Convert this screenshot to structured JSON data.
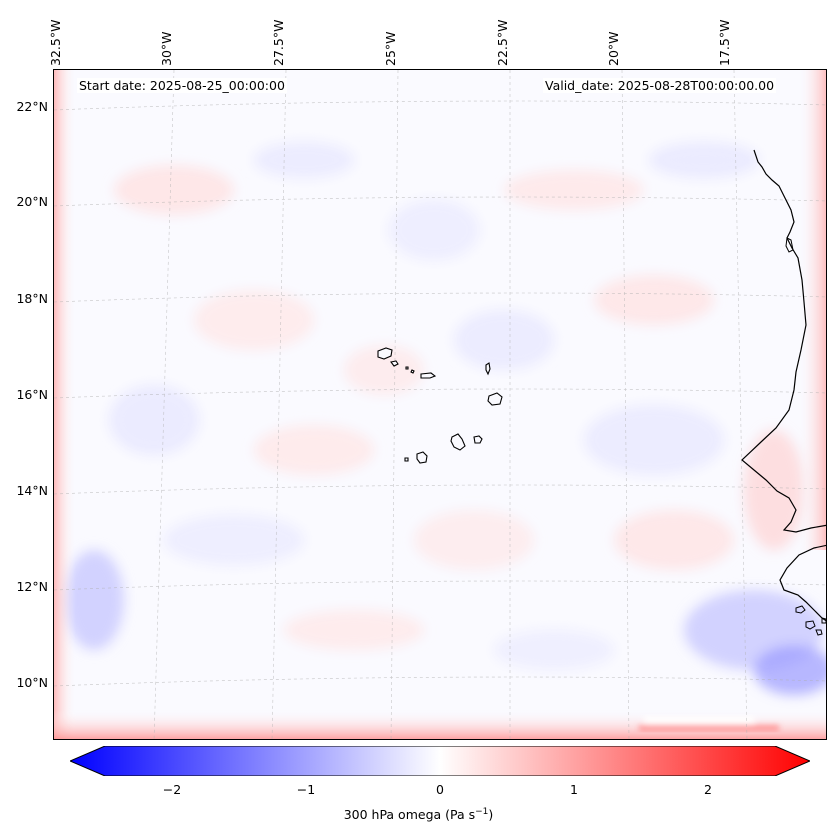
{
  "header": {
    "start_date": "Start date: 2025-08-25_00:00:00",
    "valid_date": "Valid_date: 2025-08-28T00:00:00.00"
  },
  "axes": {
    "longitude_labels": [
      "32.5°W",
      "30°W",
      "27.5°W",
      "25°W",
      "22.5°W",
      "20°W",
      "17.5°W"
    ],
    "latitude_labels": [
      "22°N",
      "20°N",
      "18°N",
      "16°N",
      "14°N",
      "12°N",
      "10°N"
    ]
  },
  "colorbar": {
    "ticks": [
      "−2",
      "−1",
      "0",
      "1",
      "2"
    ],
    "tick_values": [
      -2,
      -1,
      0,
      1,
      2
    ],
    "range": [
      -2.5,
      2.5
    ],
    "label_prefix": "300 hPa omega (Pa s",
    "label_sup": "−1",
    "label_suffix": ")",
    "low_color": "#0000ff",
    "mid_color": "#ffffff",
    "high_color": "#ff0000"
  },
  "map": {
    "ocean_color": "#fafaff",
    "coast_color": "#000000"
  }
}
